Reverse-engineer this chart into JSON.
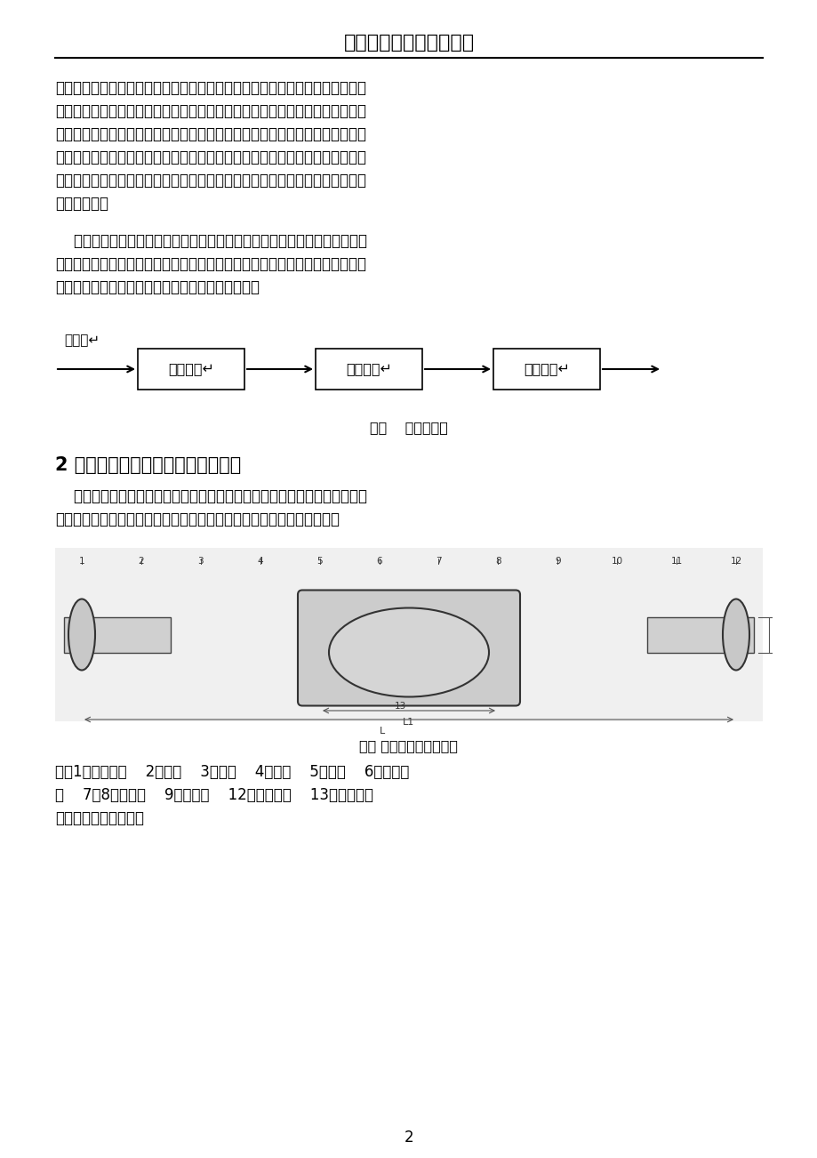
{
  "title": "琼州学院本科生学年论文",
  "page_number": "2",
  "bg_color": "#ffffff",
  "text_color": "#000000",
  "paragraph1": "它对于测量仪器的重要性如同心脏对我们自己的重要性。测量的过程就是通过一定的传感器获得信息，经过相关的转换和处理得到所需的结果的过程。如何获得信息、获得信息的质量好坏将直接影响测量结果的正确性和准确性。如果一个测量仪器系统中，传感器部分的误差很大，那么所获得的信息就不准确，如此即使后续转换装置再先进，处理数据的方法多么科学，都将不可能获得真正准确和高精度的结果。",
  "paragraph2": "相反，传感器精度的提高为客观事物的实际反映提供了更加真实信息，为后续处理提供了可靠的数据信息，这样从根本上提高了整个仪器的精度及协调性，由此可见传感器在设备仪器中是非常重要的一部分。",
  "label_beice": "被测量↵",
  "box1": "敏感原件↵",
  "box2": "转换原件↵",
  "box3": "转换电路↵",
  "fig1_caption": "图一    传感器构成",
  "section_title": "2 传统水表内部传感器设备精度解析",
  "section_para": "自来水是人们生活中不可缺少的东西，多年以来自来水的测量一直使用的是传统的水表，其主要依靠机械带动式，其基本原理如下（图二、图三）：",
  "fig2_caption": "图二 传统水表结构示意图",
  "note_line1": "注：1、入水管道    2、阀门    3、接口    4、铅封    5、说明    6、外盖螺",
  "note_line2": "帽    7（8）、表盘    9、外盖口    12、出水管道    13、水表主体",
  "note_line3": "其主要内部部件如下："
}
